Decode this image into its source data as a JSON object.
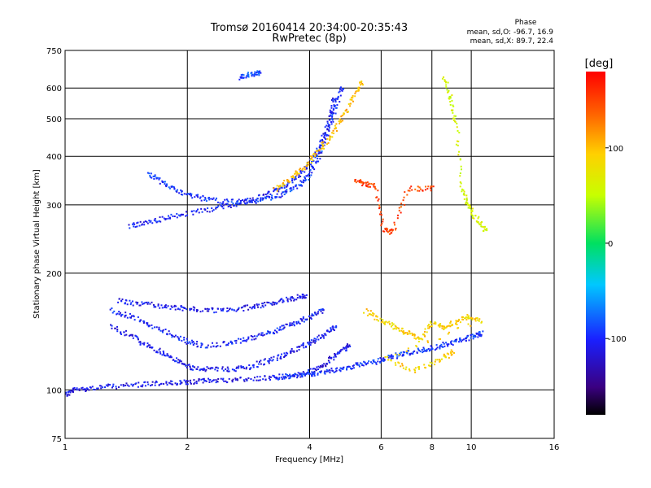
{
  "chart_data": {
    "type": "scatter",
    "title": "Tromsø 20160414 20:34:00-20:35:43",
    "subtitle": "RwPretec (8p)",
    "xlabel": "Frequency [MHz]",
    "ylabel": "Stationary phase Virtual Height [km]",
    "x_scale": "log",
    "y_scale": "log",
    "xlim": [
      1,
      16
    ],
    "ylim": [
      75,
      750
    ],
    "x_ticks": [
      1,
      2,
      4,
      6,
      8,
      10,
      16
    ],
    "x_tick_labels": [
      "1",
      "2",
      "4",
      "6",
      "8",
      "10",
      "16"
    ],
    "y_ticks": [
      75,
      100,
      200,
      300,
      400,
      500,
      600,
      750
    ],
    "y_tick_labels": [
      "75",
      "100",
      "200",
      "300",
      "400",
      "500",
      "600",
      "750"
    ],
    "grid": true,
    "phase_stats": {
      "heading": "Phase",
      "line_o": "mean, sd,O: -96.7, 16.9",
      "line_x": "mean, sd,X:  89.7, 22.4"
    },
    "colorbar": {
      "label": "[deg]",
      "range": [
        -180,
        180
      ],
      "ticks": [
        100,
        0,
        -100
      ],
      "tick_labels": [
        "100",
        "0",
        "-100"
      ],
      "colormap": "rainbow"
    },
    "series": [
      {
        "values": [
          [
            1.0,
            97
          ],
          [
            1.05,
            100
          ],
          [
            1.15,
            101
          ],
          [
            1.3,
            102
          ],
          [
            1.5,
            103
          ],
          [
            1.7,
            104
          ],
          [
            1.9,
            104
          ],
          [
            2.1,
            105
          ],
          [
            2.3,
            106
          ],
          [
            2.6,
            106
          ],
          [
            3.0,
            107
          ],
          [
            3.4,
            108
          ],
          [
            3.8,
            109
          ],
          [
            4.1,
            112
          ],
          [
            4.4,
            117
          ],
          [
            4.7,
            124
          ],
          [
            5.0,
            130
          ]
        ],
        "phase": -110
      },
      {
        "values": [
          [
            3.3,
            108
          ],
          [
            3.7,
            109
          ],
          [
            4.1,
            110
          ],
          [
            4.5,
            112
          ],
          [
            4.9,
            114
          ],
          [
            5.3,
            116
          ],
          [
            5.8,
            118
          ],
          [
            6.3,
            121
          ],
          [
            6.8,
            124
          ],
          [
            7.4,
            126
          ],
          [
            8.0,
            128
          ],
          [
            8.7,
            131
          ],
          [
            9.4,
            134
          ],
          [
            10.0,
            137
          ],
          [
            10.6,
            140
          ]
        ],
        "phase": -95
      },
      {
        "values": [
          [
            1.3,
            145
          ],
          [
            1.45,
            138
          ],
          [
            1.6,
            130
          ],
          [
            1.75,
            124
          ],
          [
            1.9,
            118
          ],
          [
            2.05,
            114
          ],
          [
            2.2,
            113
          ],
          [
            2.5,
            113
          ],
          [
            2.8,
            114
          ],
          [
            3.1,
            118
          ],
          [
            3.4,
            122
          ],
          [
            3.7,
            127
          ],
          [
            4.0,
            132
          ],
          [
            4.3,
            138
          ],
          [
            4.6,
            145
          ]
        ],
        "phase": -108
      },
      {
        "values": [
          [
            1.3,
            160
          ],
          [
            1.45,
            155
          ],
          [
            1.6,
            148
          ],
          [
            1.8,
            140
          ],
          [
            2.0,
            133
          ],
          [
            2.2,
            130
          ],
          [
            2.5,
            132
          ],
          [
            2.8,
            135
          ],
          [
            3.1,
            139
          ],
          [
            3.4,
            144
          ],
          [
            3.7,
            149
          ],
          [
            4.0,
            154
          ],
          [
            4.3,
            160
          ]
        ],
        "phase": -102
      },
      {
        "values": [
          [
            1.35,
            170
          ],
          [
            1.5,
            167
          ],
          [
            1.7,
            165
          ],
          [
            1.9,
            163
          ],
          [
            2.1,
            161
          ],
          [
            2.4,
            160
          ],
          [
            2.7,
            162
          ],
          [
            3.0,
            165
          ],
          [
            3.3,
            168
          ],
          [
            3.6,
            172
          ],
          [
            3.9,
            175
          ]
        ],
        "phase": -110
      },
      {
        "values": [
          [
            1.6,
            360
          ],
          [
            1.75,
            340
          ],
          [
            1.9,
            325
          ],
          [
            2.1,
            315
          ],
          [
            2.3,
            308
          ],
          [
            2.6,
            305
          ],
          [
            2.9,
            306
          ],
          [
            3.2,
            312
          ],
          [
            3.5,
            322
          ],
          [
            3.8,
            338
          ],
          [
            4.0,
            360
          ],
          [
            4.2,
            400
          ],
          [
            4.4,
            450
          ],
          [
            4.6,
            520
          ],
          [
            4.8,
            600
          ]
        ],
        "phase": -95
      },
      {
        "values": [
          [
            1.45,
            265
          ],
          [
            1.6,
            270
          ],
          [
            1.8,
            278
          ],
          [
            2.0,
            285
          ],
          [
            2.3,
            292
          ],
          [
            2.6,
            300
          ],
          [
            2.9,
            310
          ],
          [
            3.2,
            322
          ],
          [
            3.5,
            338
          ],
          [
            3.8,
            360
          ],
          [
            4.1,
            395
          ],
          [
            4.3,
            440
          ],
          [
            4.5,
            500
          ],
          [
            4.6,
            560
          ]
        ],
        "phase": -105
      },
      {
        "values": [
          [
            3.3,
            330
          ],
          [
            3.6,
            350
          ],
          [
            3.9,
            378
          ],
          [
            4.2,
            410
          ],
          [
            4.5,
            450
          ],
          [
            4.8,
            500
          ],
          [
            5.1,
            560
          ],
          [
            5.4,
            620
          ]
        ],
        "phase": 100
      },
      {
        "values": [
          [
            2.7,
            640
          ],
          [
            2.85,
            650
          ],
          [
            3.0,
            655
          ]
        ],
        "phase": -85
      },
      {
        "values": [
          [
            5.2,
            345
          ],
          [
            5.5,
            340
          ],
          [
            5.8,
            335
          ],
          [
            6.1,
            260
          ],
          [
            6.4,
            255
          ],
          [
            7.0,
            330
          ],
          [
            8.0,
            330
          ]
        ],
        "phase": 150
      },
      {
        "values": [
          [
            5.5,
            160
          ],
          [
            6.0,
            150
          ],
          [
            6.5,
            145
          ],
          [
            7.0,
            140
          ],
          [
            7.5,
            135
          ],
          [
            8.0,
            148
          ],
          [
            8.6,
            145
          ],
          [
            9.2,
            150
          ],
          [
            9.8,
            155
          ],
          [
            10.5,
            150
          ],
          [
            6.2,
            120
          ],
          [
            7.2,
            112
          ],
          [
            8.2,
            118
          ],
          [
            9.0,
            125
          ]
        ],
        "phase": 90
      },
      {
        "values": [
          [
            8.6,
            640
          ],
          [
            8.9,
            560
          ],
          [
            9.2,
            480
          ],
          [
            9.5,
            330
          ],
          [
            9.8,
            300
          ],
          [
            10.2,
            280
          ],
          [
            10.8,
            260
          ]
        ],
        "phase": 60
      }
    ]
  }
}
